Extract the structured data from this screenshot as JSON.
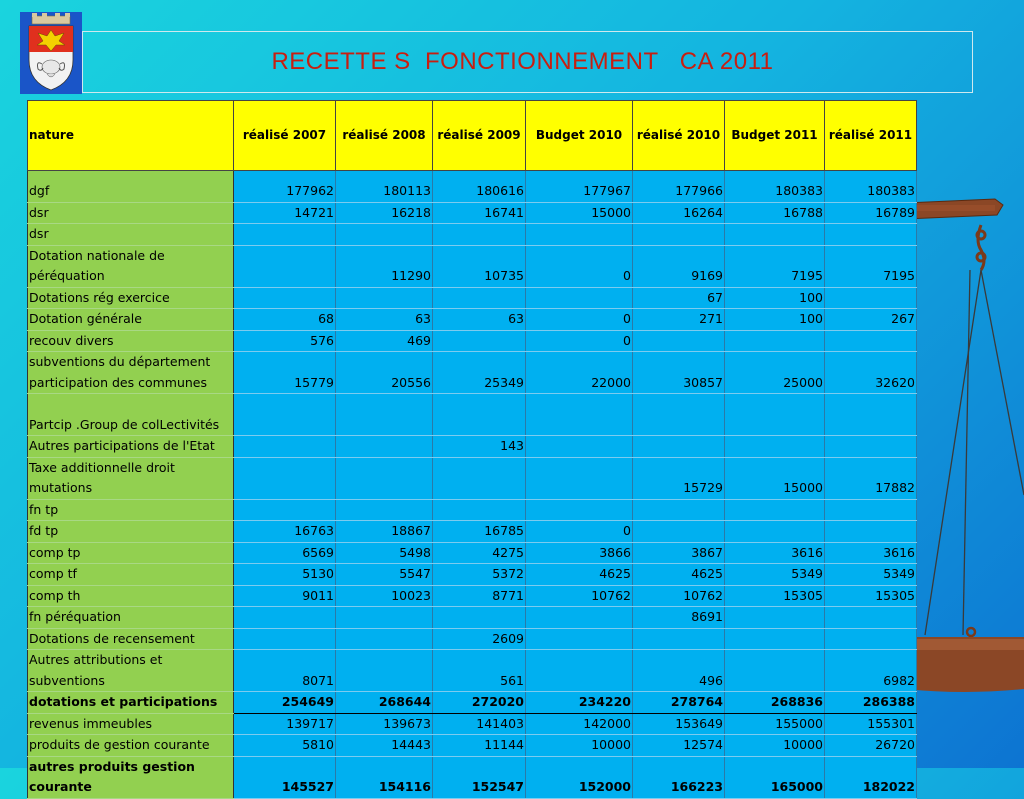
{
  "title": "RECETTE S  FONCTIONNEMENT   CA 2011",
  "table": {
    "headers": [
      "nature",
      "réalisé  2007",
      "réalisé 2008",
      "réalisé 2009",
      "Budget 2010",
      "réalisé 2010",
      "Budget 2011",
      "réalisé 2011"
    ],
    "rows": [
      {
        "label": "dgf",
        "values": [
          "177962",
          "180113",
          "180616",
          "177967",
          "177966",
          "180383",
          "180383"
        ]
      },
      {
        "label": "dsr",
        "values": [
          "14721",
          "16218",
          "16741",
          "15000",
          "16264",
          "16788",
          "16789"
        ]
      },
      {
        "label": "dsr",
        "values": [
          "",
          "",
          "",
          "",
          "",
          "",
          ""
        ]
      },
      {
        "label": "Dotation nationale de péréquation",
        "values": [
          "",
          "11290",
          "10735",
          "0",
          "9169",
          "7195",
          "7195"
        ]
      },
      {
        "label": "Dotations rég exercice",
        "values": [
          "",
          "",
          "",
          "",
          "67",
          "100",
          ""
        ]
      },
      {
        "label": "Dotation générale",
        "values": [
          "68",
          "63",
          "63",
          "0",
          "271",
          "100",
          "267"
        ]
      },
      {
        "label": "recouv divers",
        "values": [
          "576",
          "469",
          "",
          "0",
          "",
          "",
          ""
        ]
      },
      {
        "label": "subventions du département participation des communes",
        "values": [
          "15779",
          "20556",
          "25349",
          "22000",
          "30857",
          "25000",
          "32620"
        ]
      },
      {
        "label": "Partcip .Group de colLectivités",
        "values": [
          "",
          "",
          "",
          "",
          "",
          "",
          ""
        ]
      },
      {
        "label": "Autres participations de l'Etat",
        "values": [
          "",
          "",
          "143",
          "",
          "",
          "",
          ""
        ]
      },
      {
        "label": "Taxe additionnelle droit mutations",
        "values": [
          "",
          "",
          "",
          "",
          "15729",
          "15000",
          "17882"
        ]
      },
      {
        "label": "fn tp",
        "values": [
          "",
          "",
          "",
          "",
          "",
          "",
          ""
        ]
      },
      {
        "label": "fd tp",
        "values": [
          "16763",
          "18867",
          "16785",
          "0",
          "",
          "",
          ""
        ]
      },
      {
        "label": "comp tp",
        "values": [
          "6569",
          "5498",
          "4275",
          "3866",
          "3867",
          "3616",
          "3616"
        ]
      },
      {
        "label": "comp tf",
        "values": [
          "5130",
          "5547",
          "5372",
          "4625",
          "4625",
          "5349",
          "5349"
        ]
      },
      {
        "label": "comp th",
        "values": [
          "9011",
          "10023",
          "8771",
          "10762",
          "10762",
          "15305",
          "15305"
        ]
      },
      {
        "label": "fn péréquation",
        "values": [
          "",
          "",
          "",
          "",
          "8691",
          "",
          ""
        ]
      },
      {
        "label": "Dotations de recensement",
        "values": [
          "",
          "",
          "2609",
          "",
          "",
          "",
          ""
        ]
      },
      {
        "label": "Autres attributions et subventions",
        "values": [
          "8071",
          "",
          "561",
          "",
          "496",
          "",
          "6982"
        ]
      },
      {
        "label": "dotations et participations",
        "values": [
          "254649",
          "268644",
          "272020",
          "234220",
          "278764",
          "268836",
          "286388"
        ]
      },
      {
        "label": "revenus immeubles",
        "values": [
          "139717",
          "139673",
          "141403",
          "142000",
          "153649",
          "155000",
          "155301"
        ]
      },
      {
        "label": "produits de gestion courante",
        "values": [
          "5810",
          "14443",
          "11144",
          "10000",
          "12574",
          "10000",
          "26720"
        ]
      },
      {
        "label": "autres produits gestion courante",
        "values": [
          "145527",
          "154116",
          "152547",
          "152000",
          "166223",
          "165000",
          "182022"
        ]
      }
    ]
  },
  "colors": {
    "header": "#ffff00",
    "label_col": "#92d050",
    "value_cols": "#00b0f0",
    "title": "#c81e10"
  }
}
